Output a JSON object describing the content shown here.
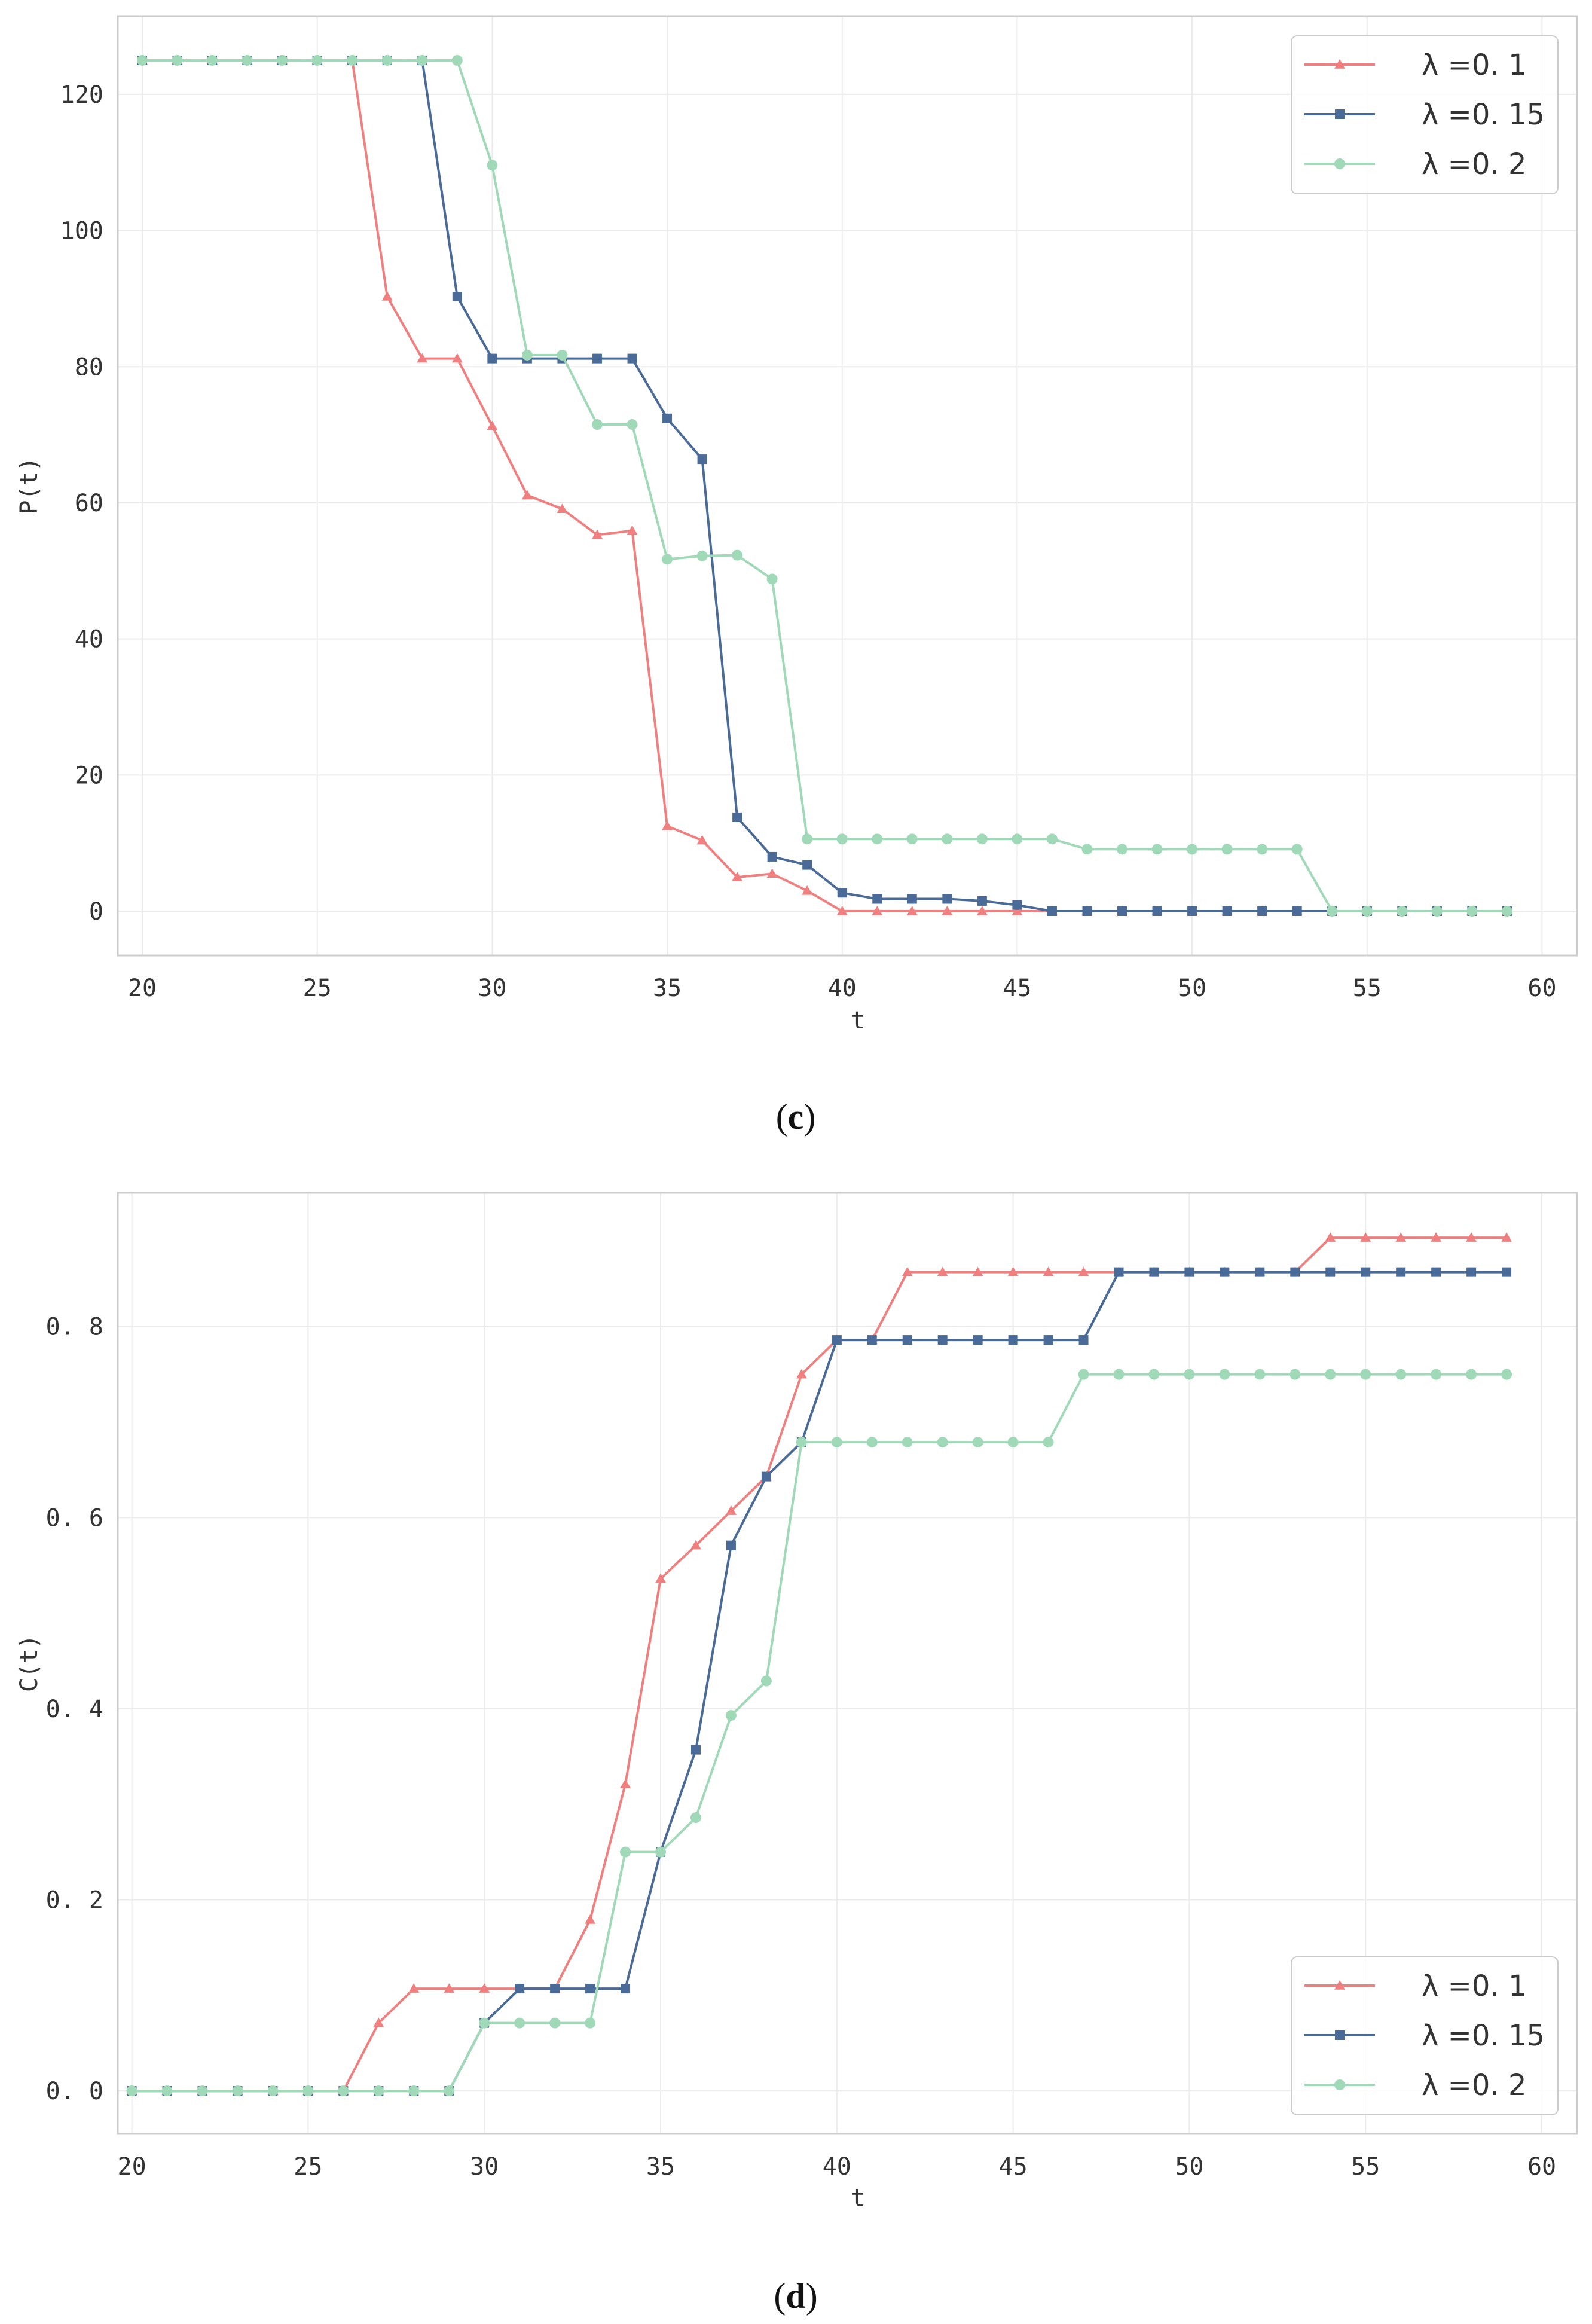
{
  "chart_data": [
    {
      "type": "line",
      "xlabel": "t",
      "ylabel": "P(t)",
      "xlim": [
        19.3,
        61.0
      ],
      "ylim": [
        -6.5,
        131.5
      ],
      "xticks": [
        20,
        25,
        30,
        35,
        40,
        45,
        50,
        55,
        60
      ],
      "yticks": [
        0,
        20,
        40,
        60,
        80,
        100,
        120
      ],
      "tick_labels_x": [
        "20",
        "25",
        "30",
        "35",
        "40",
        "45",
        "50",
        "55",
        "60"
      ],
      "tick_labels_y": [
        "0",
        "20",
        "40",
        "60",
        "80",
        "100",
        "120"
      ],
      "grid": true,
      "legend_position": "top-right",
      "caption": {
        "open": "(",
        "letter": "c",
        "close": ")"
      },
      "series": [
        {
          "name": "λ =0. 1",
          "color": "#f08080",
          "marker": "triangle",
          "x": [
            20,
            21,
            22,
            23,
            24,
            25,
            26,
            27,
            28,
            29,
            30,
            31,
            32,
            33,
            34,
            35,
            36,
            37,
            38,
            39,
            40,
            41,
            42,
            43,
            44,
            45,
            46,
            47,
            48,
            49,
            50,
            51,
            52,
            53,
            54,
            55,
            56,
            57,
            58,
            59
          ],
          "y": [
            125,
            125,
            125,
            125,
            125,
            125,
            125,
            90.3,
            81.2,
            81.2,
            71.3,
            61.1,
            59.1,
            55.3,
            55.9,
            12.5,
            10.4,
            5.0,
            5.5,
            3.0,
            0,
            0,
            0,
            0,
            0,
            0,
            0,
            0,
            0,
            0,
            0,
            0,
            0,
            0,
            0,
            0,
            0,
            0,
            0,
            0
          ]
        },
        {
          "name": "λ =0. 15",
          "color": "#4a6a97",
          "marker": "square",
          "x": [
            20,
            21,
            22,
            23,
            24,
            25,
            26,
            27,
            28,
            29,
            30,
            31,
            32,
            33,
            34,
            35,
            36,
            37,
            38,
            39,
            40,
            41,
            42,
            43,
            44,
            45,
            46,
            47,
            48,
            49,
            50,
            51,
            52,
            53,
            54,
            55,
            56,
            57,
            58,
            59
          ],
          "y": [
            125,
            125,
            125,
            125,
            125,
            125,
            125,
            125,
            125,
            90.3,
            81.2,
            81.2,
            81.2,
            81.2,
            81.2,
            72.4,
            66.4,
            13.8,
            8.0,
            6.8,
            2.7,
            1.8,
            1.8,
            1.8,
            1.5,
            0.9,
            0,
            0,
            0,
            0,
            0,
            0,
            0,
            0,
            0,
            0,
            0,
            0,
            0,
            0
          ]
        },
        {
          "name": "λ =0. 2",
          "color": "#a0d9b8",
          "marker": "circle",
          "x": [
            20,
            21,
            22,
            23,
            24,
            25,
            26,
            27,
            28,
            29,
            30,
            31,
            32,
            33,
            34,
            35,
            36,
            37,
            38,
            39,
            40,
            41,
            42,
            43,
            44,
            45,
            46,
            47,
            48,
            49,
            50,
            51,
            52,
            53,
            54,
            55,
            56,
            57,
            58,
            59
          ],
          "y": [
            125,
            125,
            125,
            125,
            125,
            125,
            125,
            125,
            125,
            125,
            109.6,
            81.7,
            81.7,
            71.5,
            71.5,
            51.7,
            52.2,
            52.3,
            48.8,
            10.6,
            10.6,
            10.6,
            10.6,
            10.6,
            10.6,
            10.6,
            10.6,
            9.1,
            9.1,
            9.1,
            9.1,
            9.1,
            9.1,
            9.1,
            0,
            0,
            0,
            0,
            0,
            0
          ]
        }
      ]
    },
    {
      "type": "line",
      "xlabel": "t",
      "ylabel": "C(t)",
      "xlim": [
        19.6,
        61.0
      ],
      "ylim": [
        -0.045,
        0.94
      ],
      "xticks": [
        20,
        25,
        30,
        35,
        40,
        45,
        50,
        55,
        60
      ],
      "yticks": [
        0.0,
        0.2,
        0.4,
        0.6,
        0.8
      ],
      "tick_labels_x": [
        "20",
        "25",
        "30",
        "35",
        "40",
        "45",
        "50",
        "55",
        "60"
      ],
      "tick_labels_y": [
        "0. 0",
        "0. 2",
        "0. 4",
        "0. 6",
        "0. 8"
      ],
      "grid": true,
      "legend_position": "bottom-right",
      "caption": {
        "open": "(",
        "letter": "d",
        "close": ")"
      },
      "series": [
        {
          "name": "λ =0. 1",
          "color": "#f08080",
          "marker": "triangle",
          "x": [
            20,
            21,
            22,
            23,
            24,
            25,
            26,
            27,
            28,
            29,
            30,
            31,
            32,
            33,
            34,
            35,
            36,
            37,
            38,
            39,
            40,
            41,
            42,
            43,
            44,
            45,
            46,
            47,
            48,
            49,
            50,
            51,
            52,
            53,
            54,
            55,
            56,
            57,
            58,
            59
          ],
          "y": [
            0,
            0,
            0,
            0,
            0,
            0,
            0,
            0.071,
            0.107,
            0.107,
            0.107,
            0.107,
            0.107,
            0.179,
            0.321,
            0.536,
            0.571,
            0.607,
            0.643,
            0.75,
            0.786,
            0.786,
            0.857,
            0.857,
            0.857,
            0.857,
            0.857,
            0.857,
            0.857,
            0.857,
            0.857,
            0.857,
            0.857,
            0.857,
            0.893,
            0.893,
            0.893,
            0.893,
            0.893,
            0.893
          ]
        },
        {
          "name": "λ =0. 15",
          "color": "#4a6a97",
          "marker": "square",
          "x": [
            20,
            21,
            22,
            23,
            24,
            25,
            26,
            27,
            28,
            29,
            30,
            31,
            32,
            33,
            34,
            35,
            36,
            37,
            38,
            39,
            40,
            41,
            42,
            43,
            44,
            45,
            46,
            47,
            48,
            49,
            50,
            51,
            52,
            53,
            54,
            55,
            56,
            57,
            58,
            59
          ],
          "y": [
            0,
            0,
            0,
            0,
            0,
            0,
            0,
            0,
            0,
            0,
            0.071,
            0.107,
            0.107,
            0.107,
            0.107,
            0.25,
            0.357,
            0.571,
            0.643,
            0.679,
            0.786,
            0.786,
            0.786,
            0.786,
            0.786,
            0.786,
            0.786,
            0.786,
            0.857,
            0.857,
            0.857,
            0.857,
            0.857,
            0.857,
            0.857,
            0.857,
            0.857,
            0.857,
            0.857,
            0.857
          ]
        },
        {
          "name": "λ =0. 2",
          "color": "#a0d9b8",
          "marker": "circle",
          "x": [
            20,
            21,
            22,
            23,
            24,
            25,
            26,
            27,
            28,
            29,
            30,
            31,
            32,
            33,
            34,
            35,
            36,
            37,
            38,
            39,
            40,
            41,
            42,
            43,
            44,
            45,
            46,
            47,
            48,
            49,
            50,
            51,
            52,
            53,
            54,
            55,
            56,
            57,
            58,
            59
          ],
          "y": [
            0,
            0,
            0,
            0,
            0,
            0,
            0,
            0,
            0,
            0,
            0.071,
            0.071,
            0.071,
            0.071,
            0.25,
            0.25,
            0.286,
            0.393,
            0.429,
            0.679,
            0.679,
            0.679,
            0.679,
            0.679,
            0.679,
            0.679,
            0.679,
            0.75,
            0.75,
            0.75,
            0.75,
            0.75,
            0.75,
            0.75,
            0.75,
            0.75,
            0.75,
            0.75,
            0.75,
            0.75
          ]
        }
      ]
    }
  ]
}
